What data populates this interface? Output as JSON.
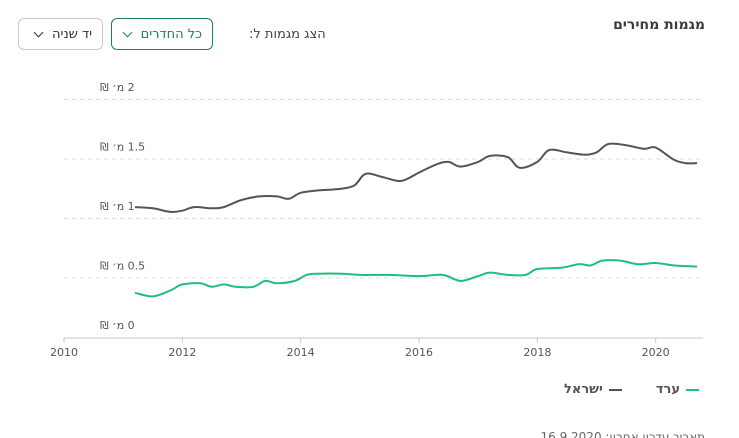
{
  "header": {
    "title": "מגמות מחירים",
    "filter_label": "הצג מגמות ל:",
    "rooms_value": "כל החדרים",
    "condition_value": "יד שניה"
  },
  "legend": {
    "items": [
      {
        "label": "ערד",
        "color": "#1fbe7f"
      },
      {
        "label": "ישראל",
        "color": "#555555"
      }
    ]
  },
  "footer": {
    "text": "תאריך עדכון אחרון: 16.9.2020"
  },
  "chart_data": {
    "type": "line",
    "title": "",
    "xlabel": "",
    "ylabel": "",
    "xlim": [
      2010,
      2020.8
    ],
    "ylim": [
      0,
      2
    ],
    "x_ticks": [
      2010,
      2012,
      2014,
      2016,
      2018,
      2020
    ],
    "y_ticks": [
      {
        "value": 0,
        "label": "0 מ׳ ₪"
      },
      {
        "value": 0.5,
        "label": "0.5 מ׳ ₪"
      },
      {
        "value": 1,
        "label": "1 מ׳ ₪"
      },
      {
        "value": 1.5,
        "label": "1.5 מ׳ ₪"
      },
      {
        "value": 2,
        "label": "2 מ׳ ₪"
      }
    ],
    "grid": true,
    "legend_position": "bottom-right",
    "series": [
      {
        "name": "ישראל",
        "color": "#555555",
        "points": [
          [
            2011.2,
            1.1
          ],
          [
            2011.5,
            1.09
          ],
          [
            2011.8,
            1.06
          ],
          [
            2012.0,
            1.07
          ],
          [
            2012.2,
            1.1
          ],
          [
            2012.5,
            1.09
          ],
          [
            2012.7,
            1.1
          ],
          [
            2013.0,
            1.16
          ],
          [
            2013.3,
            1.19
          ],
          [
            2013.6,
            1.19
          ],
          [
            2013.8,
            1.17
          ],
          [
            2014.0,
            1.22
          ],
          [
            2014.3,
            1.24
          ],
          [
            2014.6,
            1.25
          ],
          [
            2014.9,
            1.28
          ],
          [
            2015.1,
            1.38
          ],
          [
            2015.4,
            1.35
          ],
          [
            2015.7,
            1.32
          ],
          [
            2016.0,
            1.39
          ],
          [
            2016.3,
            1.46
          ],
          [
            2016.5,
            1.48
          ],
          [
            2016.7,
            1.44
          ],
          [
            2017.0,
            1.48
          ],
          [
            2017.2,
            1.53
          ],
          [
            2017.5,
            1.52
          ],
          [
            2017.7,
            1.43
          ],
          [
            2018.0,
            1.48
          ],
          [
            2018.2,
            1.58
          ],
          [
            2018.5,
            1.56
          ],
          [
            2018.8,
            1.54
          ],
          [
            2019.0,
            1.56
          ],
          [
            2019.2,
            1.63
          ],
          [
            2019.5,
            1.62
          ],
          [
            2019.8,
            1.59
          ],
          [
            2020.0,
            1.6
          ],
          [
            2020.3,
            1.5
          ],
          [
            2020.5,
            1.47
          ],
          [
            2020.7,
            1.47
          ]
        ]
      },
      {
        "name": "ערד",
        "color": "#1fbe7f",
        "points": [
          [
            2011.2,
            0.38
          ],
          [
            2011.5,
            0.35
          ],
          [
            2011.8,
            0.4
          ],
          [
            2012.0,
            0.45
          ],
          [
            2012.3,
            0.46
          ],
          [
            2012.5,
            0.43
          ],
          [
            2012.7,
            0.45
          ],
          [
            2012.9,
            0.43
          ],
          [
            2013.2,
            0.43
          ],
          [
            2013.4,
            0.48
          ],
          [
            2013.6,
            0.46
          ],
          [
            2013.9,
            0.48
          ],
          [
            2014.1,
            0.53
          ],
          [
            2014.3,
            0.54
          ],
          [
            2014.7,
            0.54
          ],
          [
            2015.0,
            0.53
          ],
          [
            2015.5,
            0.53
          ],
          [
            2016.0,
            0.52
          ],
          [
            2016.4,
            0.53
          ],
          [
            2016.7,
            0.48
          ],
          [
            2017.0,
            0.52
          ],
          [
            2017.2,
            0.55
          ],
          [
            2017.5,
            0.53
          ],
          [
            2017.8,
            0.53
          ],
          [
            2018.0,
            0.58
          ],
          [
            2018.4,
            0.59
          ],
          [
            2018.7,
            0.62
          ],
          [
            2018.9,
            0.61
          ],
          [
            2019.1,
            0.65
          ],
          [
            2019.4,
            0.65
          ],
          [
            2019.7,
            0.62
          ],
          [
            2020.0,
            0.63
          ],
          [
            2020.3,
            0.61
          ],
          [
            2020.7,
            0.6
          ]
        ]
      }
    ]
  }
}
